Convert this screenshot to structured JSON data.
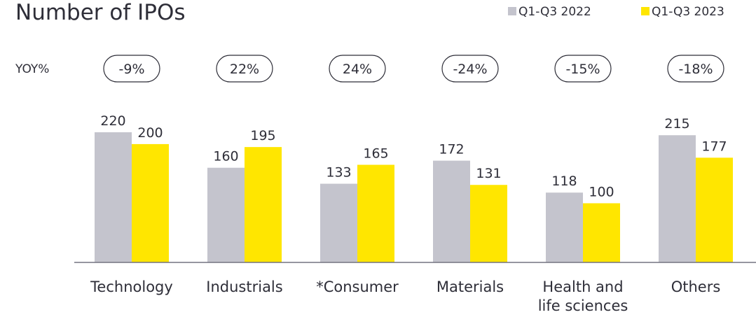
{
  "chart_data": {
    "type": "bar",
    "title": "Number of IPOs",
    "categories": [
      "Technology",
      "Industrials",
      "*Consumer",
      "Materials",
      "Health and life sciences",
      "Others"
    ],
    "category_lines": [
      [
        "Technology"
      ],
      [
        "Industrials"
      ],
      [
        "*Consumer"
      ],
      [
        "Materials"
      ],
      [
        "Health and",
        "life sciences"
      ],
      [
        "Others"
      ]
    ],
    "series": [
      {
        "name": "Q1-Q3 2022",
        "color": "#c4c4cd",
        "values": [
          220,
          160,
          133,
          172,
          118,
          215
        ]
      },
      {
        "name": "Q1-Q3 2023",
        "color": "#ffe600",
        "values": [
          200,
          195,
          165,
          131,
          100,
          177
        ]
      }
    ],
    "yoy_label": "YOY%",
    "yoy": [
      "-9%",
      "22%",
      "24%",
      "-24%",
      "-15%",
      "-18%"
    ],
    "ylim": [
      0,
      220
    ],
    "legend": "top-right",
    "grid": false
  }
}
